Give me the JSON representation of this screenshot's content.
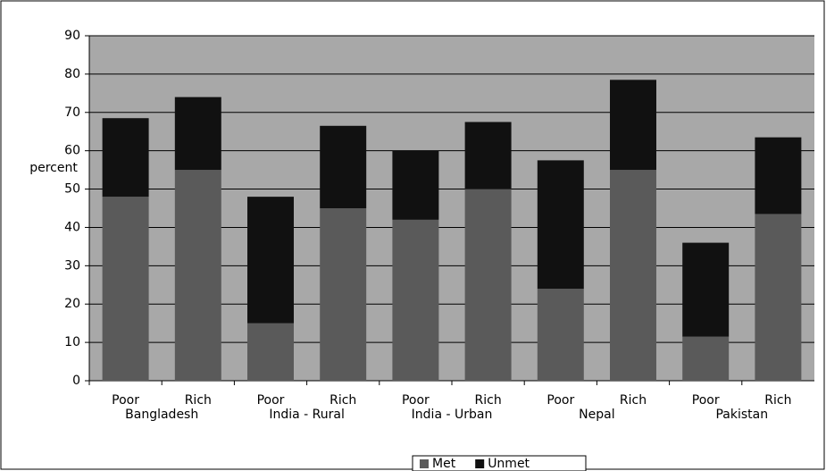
{
  "chart_data": {
    "type": "stacked_bar",
    "y_label": "percent",
    "categories": [
      "Poor",
      "Rich",
      "Poor",
      "Rich",
      "Poor",
      "Rich",
      "Poor",
      "Rich",
      "Poor",
      "Rich"
    ],
    "groups": [
      "Bangladesh",
      "India - Rural",
      "India - Urban",
      "Nepal",
      "Pakistan"
    ],
    "series": [
      {
        "name": "Met",
        "color": "#5a5a5a",
        "values": [
          48,
          55,
          15,
          45,
          42,
          50,
          24,
          55,
          11.5,
          43.5
        ]
      },
      {
        "name": "Unmet",
        "color": "#111111",
        "values": [
          20.5,
          19,
          33,
          21.5,
          18,
          17.5,
          33.5,
          23.5,
          24.5,
          20
        ]
      }
    ],
    "ylim": [
      0,
      90
    ],
    "yticks": [
      0,
      10,
      20,
      30,
      40,
      50,
      60,
      70,
      80,
      90
    ],
    "grid": true,
    "legend": "bottom"
  }
}
